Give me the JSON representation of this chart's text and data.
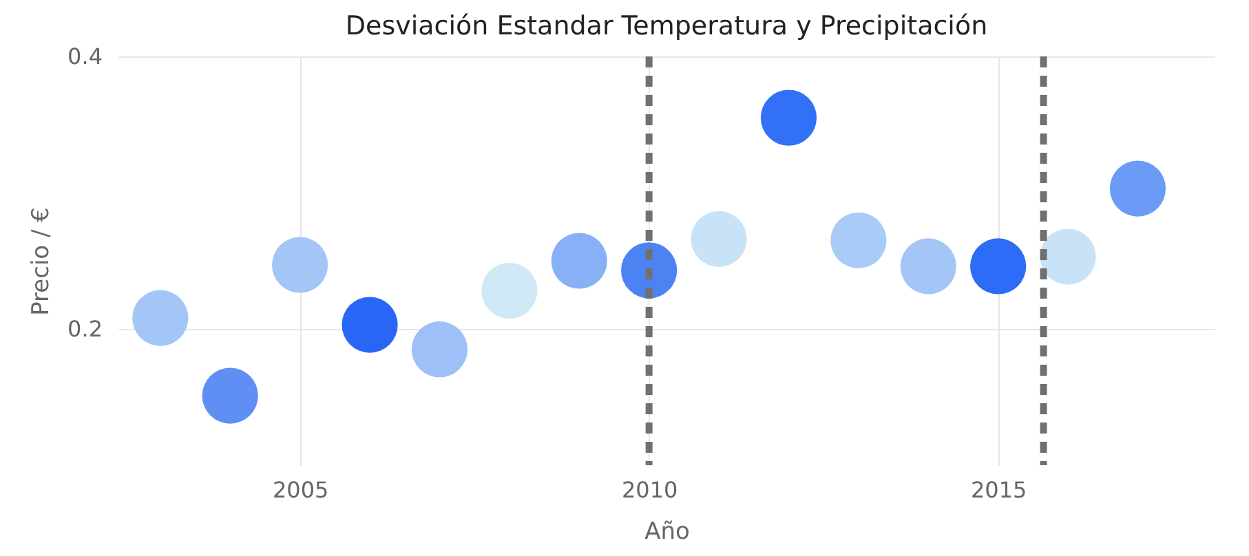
{
  "chart_data": {
    "type": "scatter",
    "title": "Desviación Estandar Temperatura y Precipitación",
    "xlabel": "Año",
    "ylabel": "Precio / €",
    "x": [
      2003,
      2004,
      2005,
      2006,
      2007,
      2008,
      2009,
      2010,
      2011,
      2012,
      2013,
      2014,
      2015,
      2016,
      2017
    ],
    "values": [
      0.208,
      0.151,
      0.247,
      0.203,
      0.185,
      0.228,
      0.25,
      0.243,
      0.266,
      0.355,
      0.265,
      0.246,
      0.246,
      0.253,
      0.303
    ],
    "colors": [
      "#a3c6f7",
      "#5f8ff5",
      "#a3c6f7",
      "#2a66f5",
      "#9cc0f7",
      "#cfe8f5",
      "#88b0f7",
      "#4d82f2",
      "#c8e3f7",
      "#3170f7",
      "#a8cbf7",
      "#a3c6f7",
      "#2d6cf7",
      "#c8e3f7",
      "#6b9af7"
    ],
    "xlim": [
      2002.4,
      2018.1
    ],
    "xticks": [
      2005,
      2010,
      2015
    ],
    "ylim": [
      0.1,
      0.4
    ],
    "yticks": [
      0.2,
      0.4
    ],
    "grid": true,
    "ref_lines": [
      {
        "axis": "x",
        "value": 2010,
        "label": null,
        "color": "#707070",
        "line_style": "dashed"
      },
      {
        "axis": "x",
        "value": 2015.65,
        "label": null,
        "color": "#707070",
        "line_style": "dashed"
      }
    ]
  }
}
